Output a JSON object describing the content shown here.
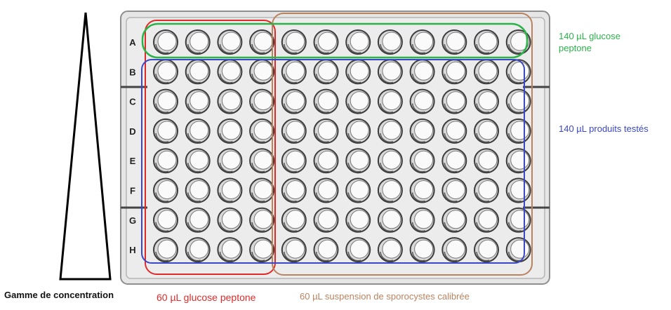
{
  "plate": {
    "rows": [
      "A",
      "B",
      "C",
      "D",
      "E",
      "F",
      "G",
      "H"
    ],
    "columns": 12
  },
  "labels": {
    "green": "140 µL glucose peptone",
    "blue": "140 µL produits testés",
    "red": "60 µL glucose peptone",
    "brown": "60 µL suspension de sporocystes calibrée",
    "gradient": "Gamme de concentration"
  },
  "colors": {
    "green": "#2bb34a",
    "blue": "#3a47c8",
    "red": "#e02a2a",
    "brown": "#b9835f",
    "plate_fill": "#e9e9e9",
    "plate_border": "#9a9a9a",
    "well_fill": "#fafafa",
    "well_ring": "#3c3c3c"
  }
}
